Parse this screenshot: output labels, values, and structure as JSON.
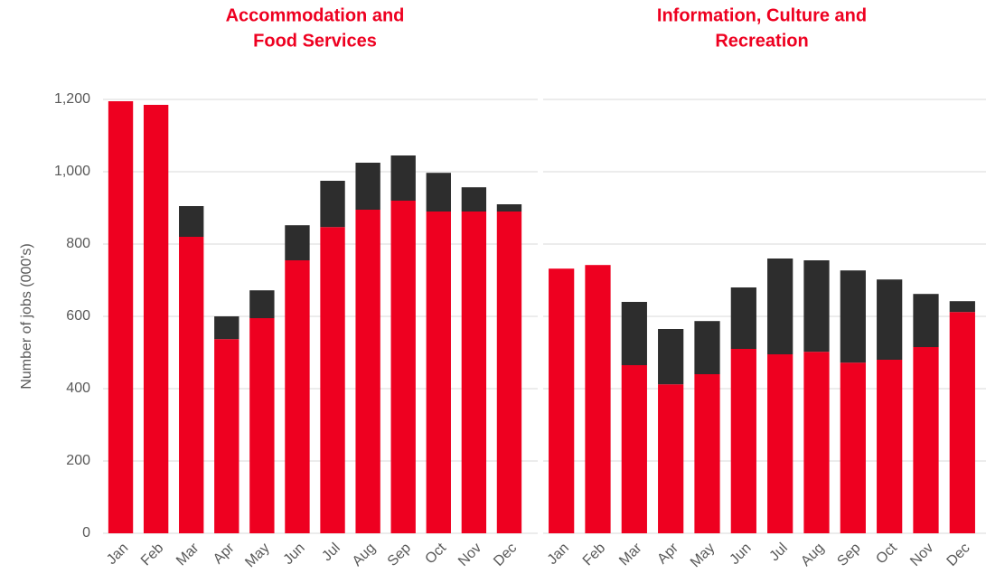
{
  "chart_data": [
    {
      "type": "bar",
      "stacked": true,
      "title": [
        "Accommodation and",
        "Food Services"
      ],
      "y_label": "Number of jobs (000's)",
      "categories": [
        "Jan",
        "Feb",
        "Mar",
        "Apr",
        "May",
        "Jun",
        "Jul",
        "Aug",
        "Sep",
        "Oct",
        "Nov",
        "Dec"
      ],
      "series": [
        {
          "color": "#ee0020",
          "values": [
            1195,
            1185,
            820,
            537,
            595,
            755,
            847,
            895,
            920,
            890,
            890,
            890
          ]
        },
        {
          "color": "#2d2d2d",
          "values": [
            0,
            0,
            85,
            63,
            77,
            97,
            128,
            130,
            125,
            107,
            67,
            20
          ]
        }
      ],
      "ylim": [
        0,
        1200
      ],
      "yticks": [
        0,
        200,
        400,
        600,
        800,
        {
          "value": 1000,
          "label": "1,000"
        },
        {
          "value": 1200,
          "label": "1,200"
        }
      ],
      "grid": true
    },
    {
      "type": "bar",
      "stacked": true,
      "title": [
        "Information, Culture and",
        "Recreation"
      ],
      "categories": [
        "Jan",
        "Feb",
        "Mar",
        "Apr",
        "May",
        "Jun",
        "Jul",
        "Aug",
        "Sep",
        "Oct",
        "Nov",
        "Dec"
      ],
      "series": [
        {
          "color": "#ee0020",
          "values": [
            732,
            742,
            465,
            412,
            440,
            510,
            495,
            502,
            472,
            480,
            515,
            612
          ]
        },
        {
          "color": "#2d2d2d",
          "values": [
            0,
            0,
            175,
            153,
            147,
            170,
            265,
            253,
            255,
            222,
            147,
            30
          ]
        }
      ],
      "ylim": [
        0,
        1200
      ],
      "yticks": [
        0,
        200,
        400,
        600,
        800,
        1000,
        1200
      ],
      "grid": true
    }
  ]
}
